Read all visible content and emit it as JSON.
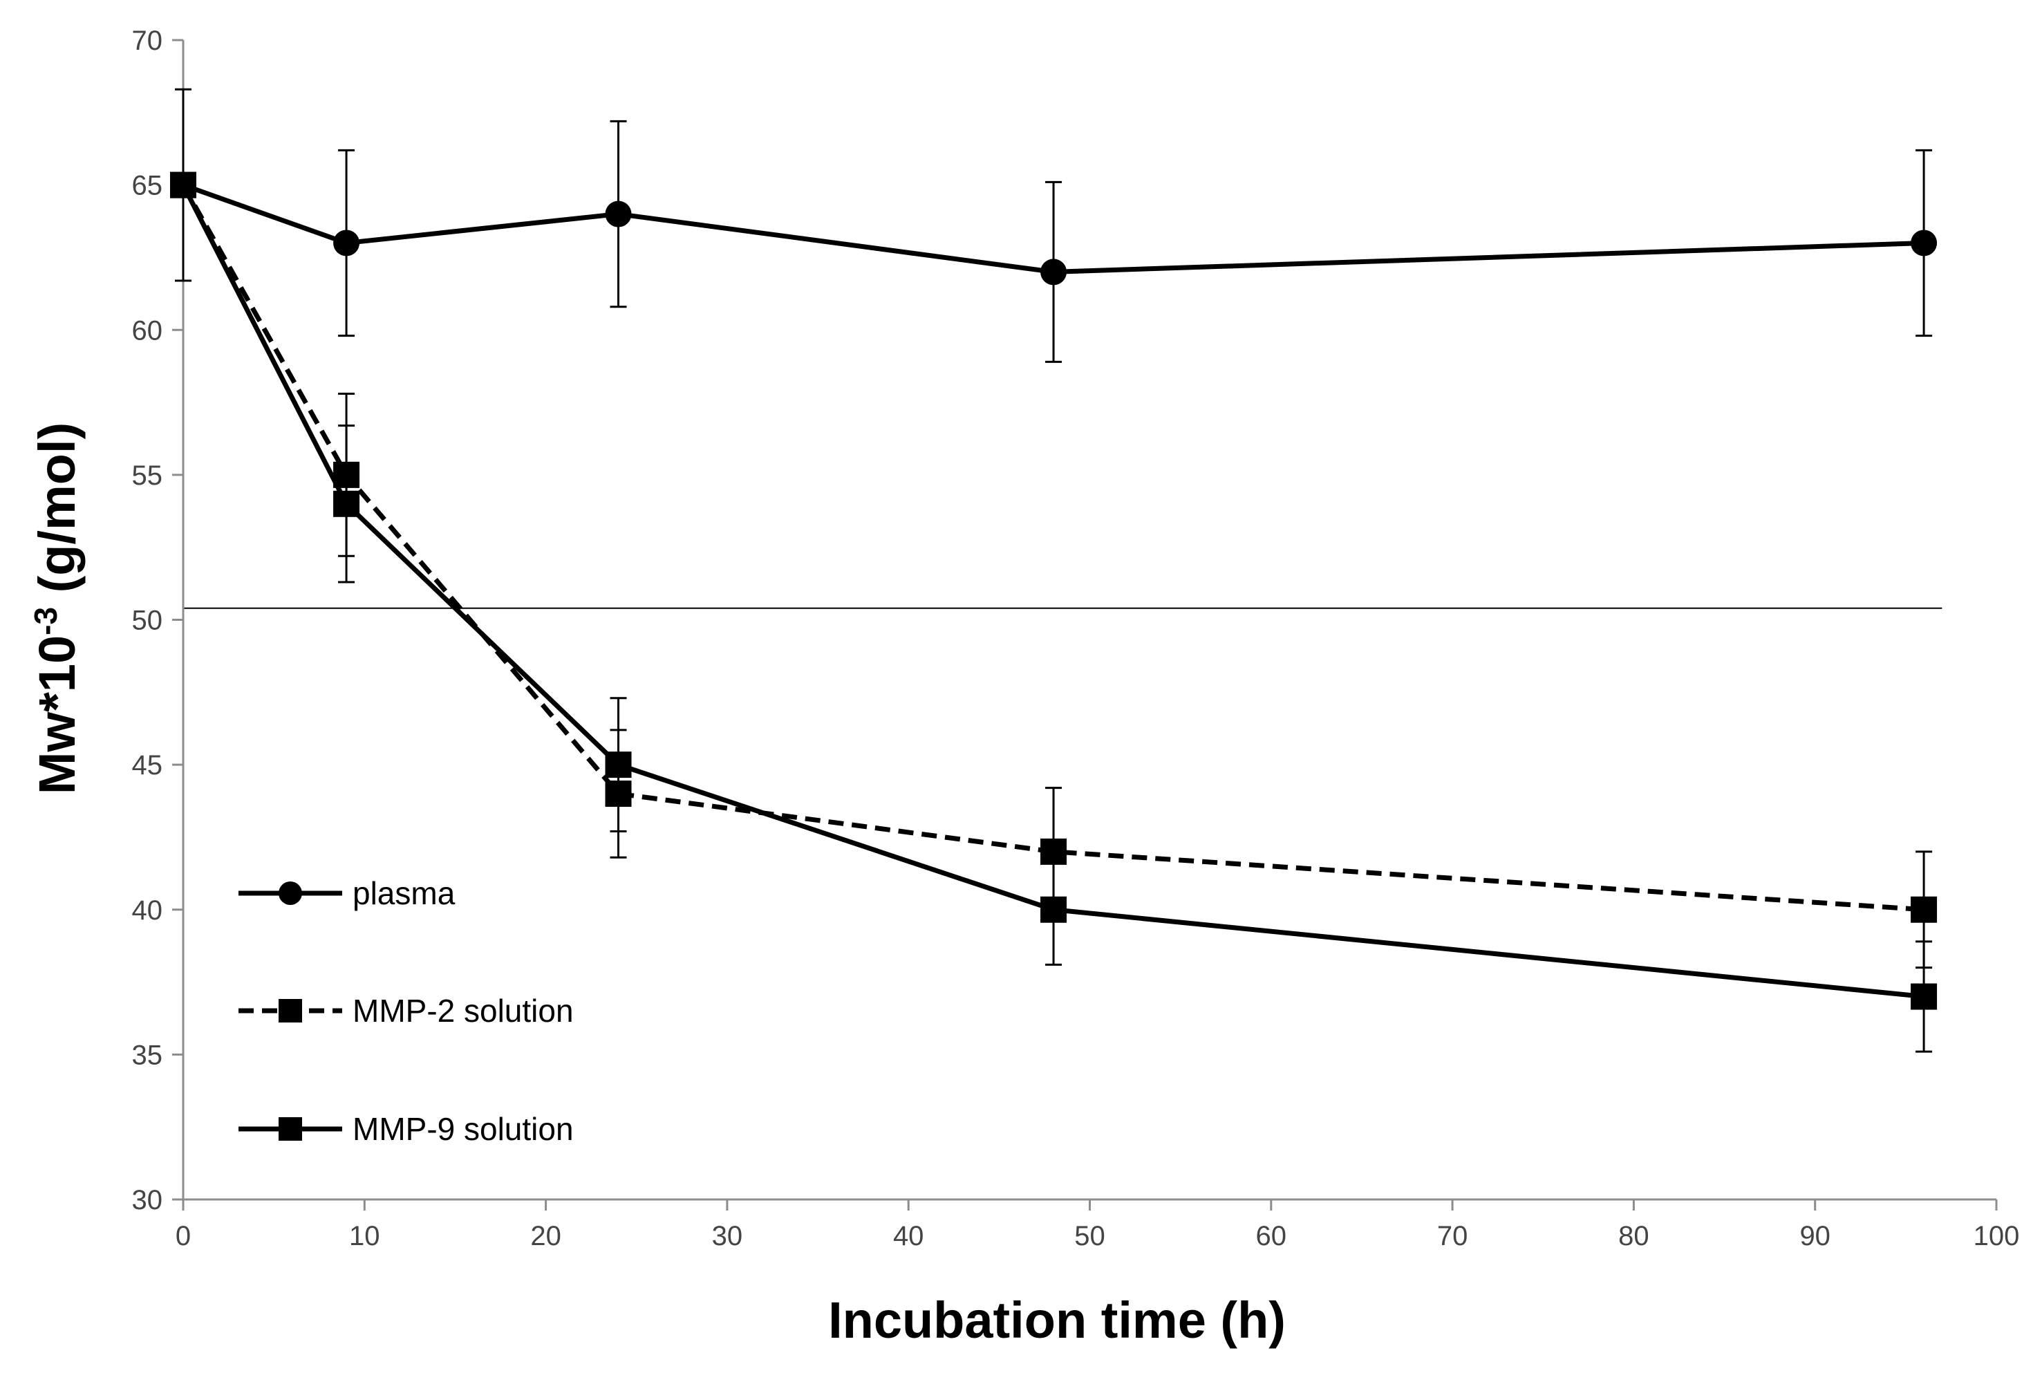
{
  "chart_data": {
    "type": "line",
    "xlabel": "Incubation time (h)",
    "ylabel": {
      "base": "Mw*10",
      "superscript": "-3",
      "units": " (g/mol)"
    },
    "xlim": [
      0,
      100
    ],
    "ylim": [
      30,
      70
    ],
    "xticks": [
      0,
      10,
      20,
      30,
      40,
      50,
      60,
      70,
      80,
      90,
      100
    ],
    "yticks": [
      30,
      35,
      40,
      45,
      50,
      55,
      60,
      65,
      70
    ],
    "reference_line_y": 50.4,
    "reference_line_x_end": 97,
    "series": [
      {
        "name": "plasma",
        "marker": "circle",
        "dash": "solid",
        "x": [
          0,
          9,
          24,
          48,
          96
        ],
        "y": [
          65,
          63,
          64,
          62,
          63
        ],
        "err": [
          3.3,
          3.2,
          3.2,
          3.1,
          3.2
        ]
      },
      {
        "name": "MMP-2 solution",
        "marker": "square",
        "dash": "dashed",
        "x": [
          0,
          9,
          24,
          48,
          96
        ],
        "y": [
          65,
          55,
          44,
          42,
          40
        ],
        "err": [
          0,
          2.8,
          2.2,
          2.2,
          2.0
        ]
      },
      {
        "name": "MMP-9 solution",
        "marker": "square",
        "dash": "solid",
        "x": [
          0,
          9,
          24,
          48,
          96
        ],
        "y": [
          65,
          54,
          45,
          40,
          37
        ],
        "err": [
          0,
          2.7,
          2.3,
          1.9,
          1.9
        ]
      }
    ],
    "legend": {
      "position": "bottom-left"
    }
  },
  "colors": {
    "line": "#000000",
    "axis": "#8c8c8c",
    "tick_text": "#444444"
  }
}
